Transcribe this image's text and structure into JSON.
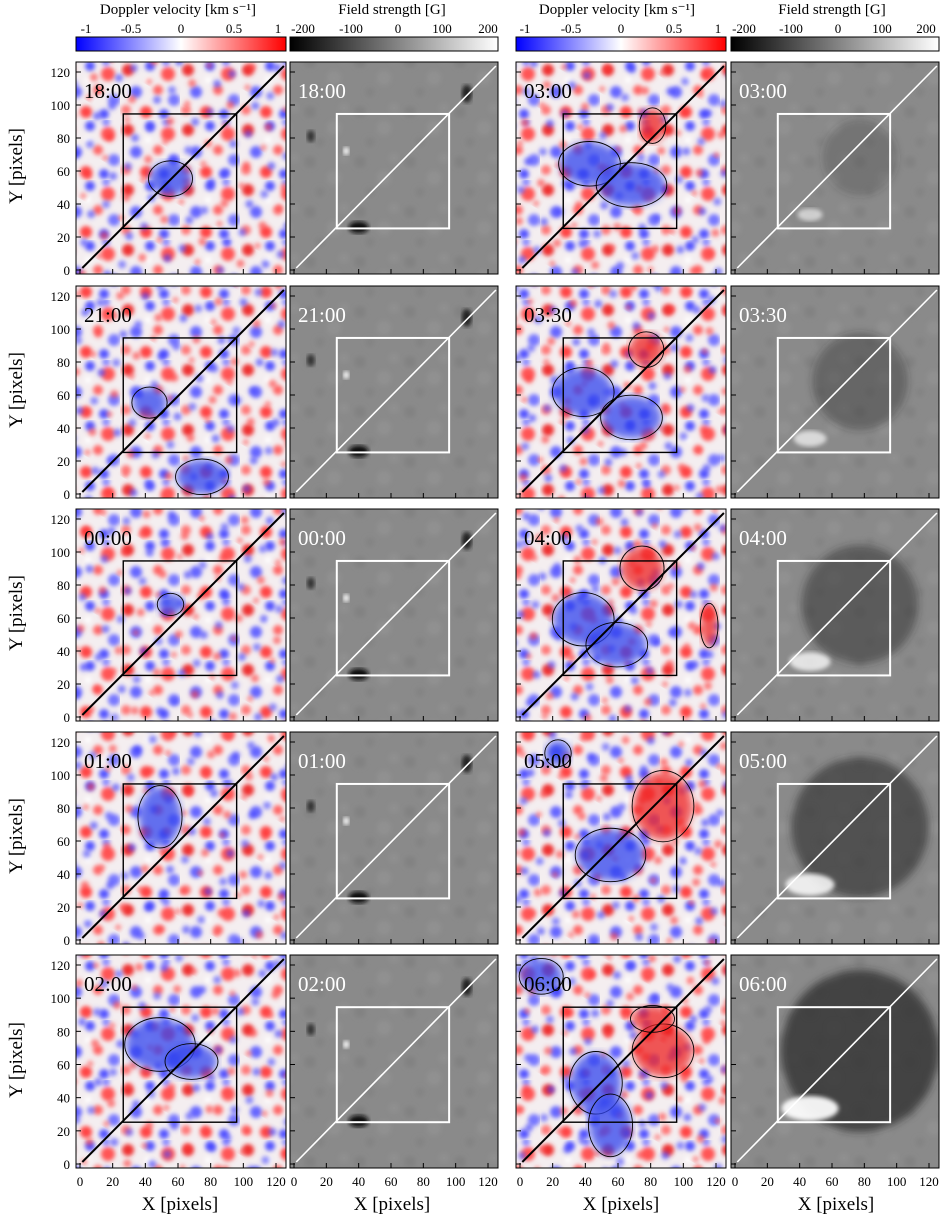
{
  "colorbars": {
    "doppler": {
      "label": "Doppler velocity [km s⁻¹]",
      "ticks": [
        "-1",
        "-0.5",
        "0",
        "0.5",
        "1"
      ],
      "colors": [
        "#0000ff",
        "#ffffff",
        "#ff0000"
      ]
    },
    "field": {
      "label": "Field strength [G]",
      "ticks": [
        "-200",
        "-100",
        "0",
        "100",
        "200"
      ],
      "colors": [
        "#000000",
        "#ffffff"
      ]
    }
  },
  "axes": {
    "ylabel": "Y [pixels]",
    "xlabel": "X [pixels]",
    "yticks": [
      "0",
      "20",
      "40",
      "60",
      "80",
      "100",
      "120"
    ],
    "xticks": [
      "0",
      "20",
      "40",
      "60",
      "80",
      "100",
      "120"
    ]
  },
  "panels": {
    "left_column_times": [
      "18:00",
      "21:00",
      "00:00",
      "01:00",
      "02:00"
    ],
    "right_column_times": [
      "03:00",
      "03:30",
      "04:00",
      "05:00",
      "06:00"
    ]
  }
}
